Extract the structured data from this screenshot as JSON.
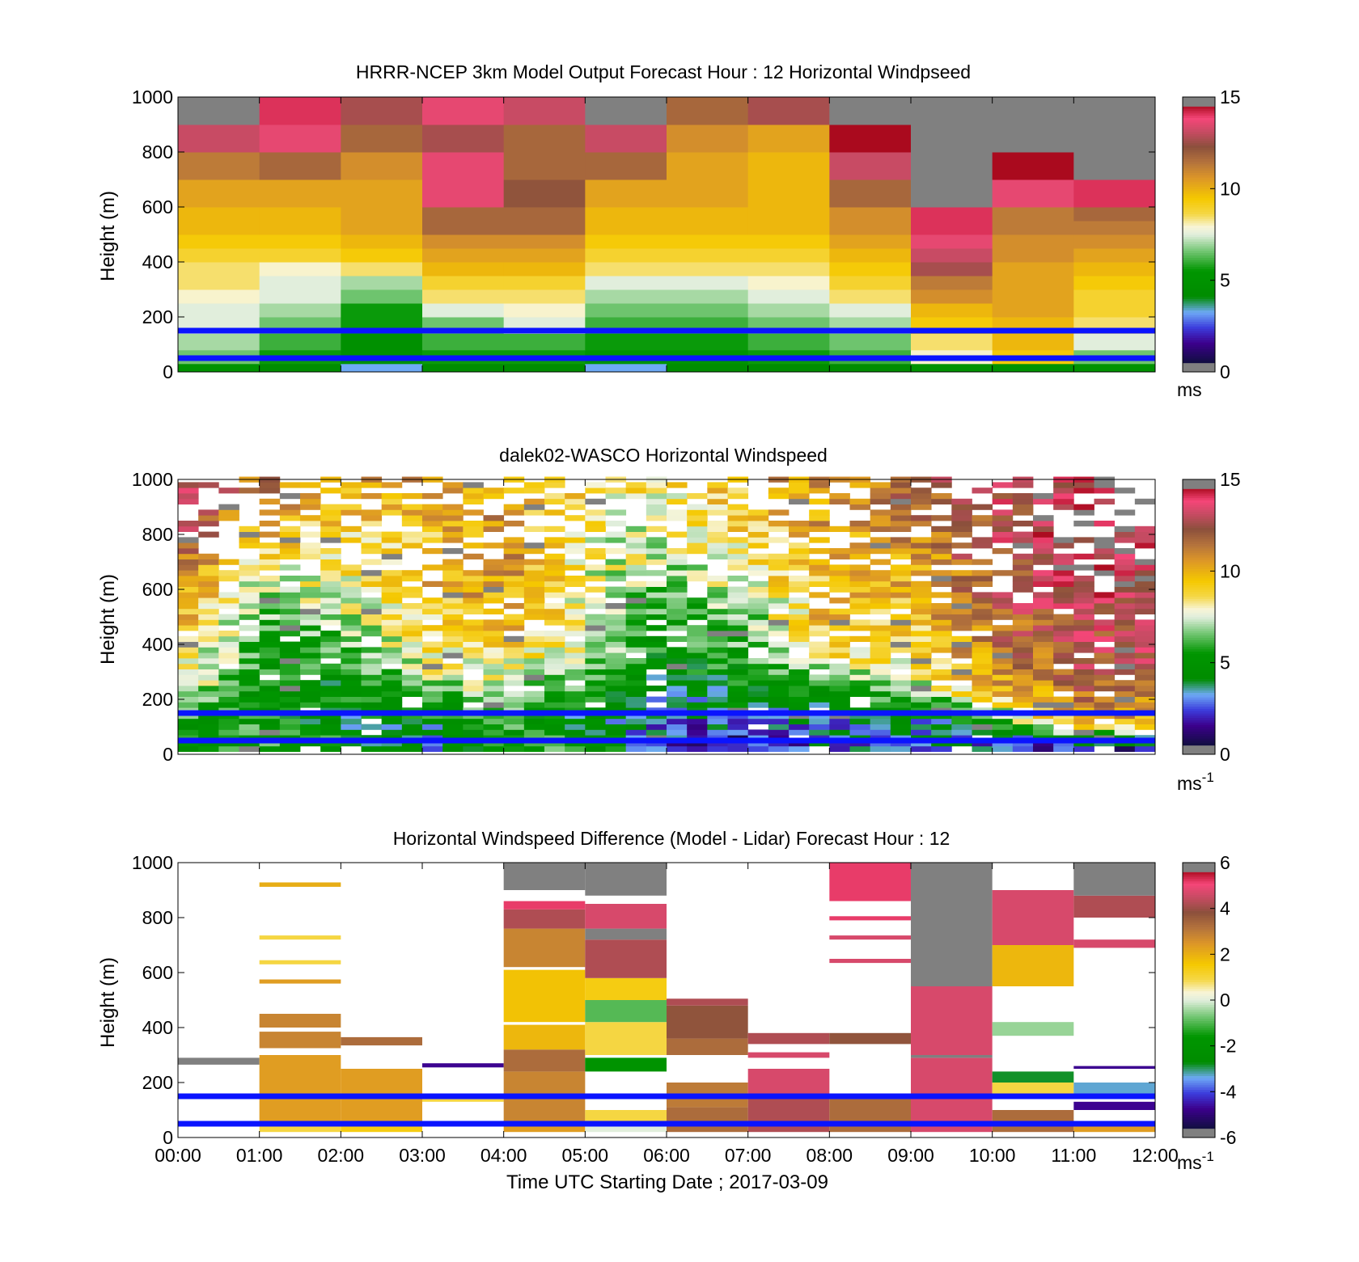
{
  "chart_data": [
    {
      "type": "heatmap",
      "title": "HRRR-NCEP 3km Model Output   Forecast Hour : 12 Horizontal Windpseed",
      "ylabel": "Height (m)",
      "xlabel": "",
      "ylim": [
        0,
        1000
      ],
      "yticks": [
        "0",
        "200",
        "400",
        "600",
        "800",
        "1000"
      ],
      "xlim_hours": [
        0,
        12
      ],
      "xticks_shown": false,
      "colorbar": {
        "min": 0,
        "max": 15,
        "ticks": [
          "0",
          "5",
          "10",
          "15"
        ],
        "unit": "ms",
        "unit_exp": ""
      },
      "reference_lines_m": [
        150,
        50
      ],
      "columns_hour": [
        0,
        1,
        2,
        3,
        4,
        5,
        6,
        7,
        8,
        9,
        10,
        11
      ],
      "rows": [
        {
          "bottom": 0,
          "top": 30,
          "values": [
            5,
            4,
            3,
            4,
            4,
            3,
            4,
            4,
            4,
            5,
            5,
            5
          ]
        },
        {
          "bottom": 30,
          "top": 80,
          "values": [
            6.5,
            5.5,
            4.5,
            5.5,
            5.5,
            5,
            5,
            5.5,
            6,
            8,
            9.5,
            6.5
          ]
        },
        {
          "bottom": 80,
          "top": 140,
          "values": [
            7,
            6,
            4.5,
            6,
            6,
            5.5,
            5.5,
            6,
            6.5,
            8.5,
            10,
            7.5
          ]
        },
        {
          "bottom": 140,
          "top": 200,
          "values": [
            7.5,
            6.5,
            5.5,
            6.5,
            7.5,
            6,
            6,
            6.5,
            7,
            9.5,
            10,
            8.5
          ]
        },
        {
          "bottom": 200,
          "top": 250,
          "values": [
            7.5,
            7,
            5.5,
            7.5,
            8,
            6.5,
            6.5,
            7,
            7.5,
            10,
            10.5,
            9
          ]
        },
        {
          "bottom": 250,
          "top": 300,
          "values": [
            8,
            7.5,
            6.5,
            8.5,
            8.5,
            7,
            7,
            7.5,
            8.5,
            11,
            10.5,
            9
          ]
        },
        {
          "bottom": 300,
          "top": 350,
          "values": [
            8.5,
            7.5,
            7,
            9,
            9,
            7.5,
            7.5,
            8,
            9,
            11.5,
            10.5,
            9.5
          ]
        },
        {
          "bottom": 350,
          "top": 400,
          "values": [
            8.5,
            8,
            8.5,
            10,
            10,
            8.5,
            8.5,
            8.5,
            9.5,
            13,
            10.5,
            10
          ]
        },
        {
          "bottom": 400,
          "top": 450,
          "values": [
            9,
            9,
            9.5,
            10.5,
            10.5,
            9,
            9,
            9,
            10,
            13.5,
            11,
            10.5
          ]
        },
        {
          "bottom": 450,
          "top": 500,
          "values": [
            9.5,
            9.5,
            10,
            11,
            11,
            9.5,
            9.5,
            9.5,
            10.5,
            14,
            11,
            11
          ]
        },
        {
          "bottom": 500,
          "top": 550,
          "values": [
            10,
            10,
            10.5,
            12,
            12,
            10,
            10,
            10,
            11,
            14.5,
            11.5,
            11.5
          ]
        },
        {
          "bottom": 550,
          "top": 600,
          "values": [
            10,
            10,
            10.5,
            12,
            12,
            10,
            10,
            10,
            11,
            14.5,
            11.5,
            12
          ]
        },
        {
          "bottom": 600,
          "top": 700,
          "values": [
            10.5,
            10.5,
            10.5,
            14,
            12.5,
            10.5,
            10.5,
            10,
            12,
            16,
            14,
            14.5
          ]
        },
        {
          "bottom": 700,
          "top": 800,
          "values": [
            11.5,
            12,
            11,
            14,
            12,
            12,
            10.5,
            10,
            13.5,
            16,
            15,
            16
          ]
        },
        {
          "bottom": 800,
          "top": 900,
          "values": [
            13.5,
            14,
            12,
            13,
            12,
            13.5,
            11,
            10.5,
            15,
            16,
            16,
            16
          ]
        },
        {
          "bottom": 900,
          "top": 1000,
          "values": [
            16,
            14.5,
            13,
            14,
            13.5,
            16,
            12,
            13,
            16,
            16,
            16,
            16
          ]
        }
      ]
    },
    {
      "type": "heatmap",
      "title": "dalek02-WASCO  Horizontal Windspeed",
      "ylabel": "Height (m)",
      "xlabel": "",
      "ylim": [
        0,
        1000
      ],
      "yticks": [
        "0",
        "200",
        "400",
        "600",
        "800",
        "1000"
      ],
      "xlim_hours": [
        0,
        12
      ],
      "xticks_shown": false,
      "colorbar": {
        "min": 0,
        "max": 15,
        "ticks": [
          "0",
          "5",
          "10",
          "15"
        ],
        "unit": "ms",
        "unit_exp": "-1"
      },
      "reference_lines_m": [
        150,
        50
      ],
      "profile_interval_hours": 0.25,
      "range_gate_m": 20,
      "profile_mean_by_hour": {
        "heights_m": [
          30,
          110,
          200,
          300,
          400,
          500,
          600,
          700,
          800,
          900,
          980
        ],
        "hours": [
          0,
          1,
          2,
          3,
          4,
          5,
          6,
          7,
          8,
          9,
          10,
          11,
          12
        ],
        "values": [
          [
            4.5,
            5.5,
            5.5,
            3.0,
            5.0,
            6.0,
            2.0,
            1.0,
            2.5,
            3.0,
            2.0,
            1.5,
            1.5
          ],
          [
            5.0,
            5.5,
            4.0,
            4.0,
            5.5,
            3.5,
            2.5,
            2.5,
            3.0,
            3.0,
            5.0,
            9.5,
            10.0
          ],
          [
            7.5,
            5.0,
            4.5,
            6.0,
            6.5,
            5.0,
            3.5,
            4.5,
            5.0,
            5.5,
            9.0,
            11.5,
            11.5
          ],
          [
            8.5,
            5.0,
            5.0,
            7.5,
            8.0,
            6.5,
            4.5,
            5.0,
            7.0,
            8.0,
            11.0,
            12.5,
            13.0
          ],
          [
            9.5,
            5.5,
            6.0,
            8.5,
            9.5,
            7.5,
            5.0,
            6.0,
            9.5,
            9.0,
            11.5,
            12.5,
            13.5
          ],
          [
            10.5,
            6.0,
            7.0,
            9.0,
            10.0,
            8.0,
            5.5,
            6.5,
            10.0,
            9.5,
            12.0,
            13.0,
            14.0
          ],
          [
            11.0,
            7.0,
            8.0,
            10.0,
            10.5,
            8.0,
            6.0,
            7.5,
            10.0,
            10.0,
            12.5,
            13.5,
            14.0
          ],
          [
            12.0,
            8.5,
            8.5,
            9.0,
            11.0,
            8.0,
            7.0,
            8.5,
            10.0,
            10.5,
            12.5,
            14.0,
            14.0
          ],
          [
            13.0,
            10.0,
            9.0,
            9.5,
            11.0,
            8.0,
            7.5,
            9.0,
            10.5,
            11.0,
            13.0,
            14.0,
            14.0
          ],
          [
            13.5,
            11.0,
            9.5,
            10.0,
            10.5,
            8.5,
            8.0,
            9.5,
            10.5,
            11.5,
            13.0,
            14.0,
            14.5
          ],
          [
            14.0,
            11.5,
            10.0,
            10.5,
            10.5,
            9.0,
            8.5,
            10.0,
            11.0,
            12.0,
            13.5,
            14.0,
            14.5
          ]
        ]
      }
    },
    {
      "type": "heatmap",
      "title": "Horizontal Windspeed Difference (Model - Lidar) Forecast Hour : 12",
      "ylabel": "Height (m)",
      "xlabel": "Time UTC  Starting Date ; 2017-03-09",
      "ylim": [
        0,
        1000
      ],
      "yticks": [
        "0",
        "200",
        "400",
        "600",
        "800",
        "1000"
      ],
      "xlim_hours": [
        0,
        12
      ],
      "xticks": [
        "00:00",
        "01:00",
        "02:00",
        "03:00",
        "04:00",
        "05:00",
        "06:00",
        "07:00",
        "08:00",
        "09:00",
        "10:00",
        "11:00",
        "12:00"
      ],
      "colorbar": {
        "min": -6,
        "max": 6,
        "ticks": [
          "-6",
          "-4",
          "-2",
          "0",
          "2",
          "4",
          "6"
        ],
        "unit": "ms",
        "unit_exp": "-1"
      },
      "reference_lines_m": [
        150,
        50
      ],
      "columns_hour": [
        0,
        1,
        2,
        3,
        4,
        5,
        6,
        7,
        8,
        9,
        10,
        11
      ],
      "segments": [
        [
          {
            "bottom": 265,
            "top": 290,
            "value": 6.5
          }
        ],
        [
          {
            "bottom": 20,
            "top": 40,
            "value": 1
          },
          {
            "bottom": 40,
            "top": 300,
            "value": 2.5
          },
          {
            "bottom": 325,
            "top": 385,
            "value": 3
          },
          {
            "bottom": 400,
            "top": 450,
            "value": 3
          },
          {
            "bottom": 560,
            "top": 575,
            "value": 2.5
          },
          {
            "bottom": 630,
            "top": 645,
            "value": 1
          },
          {
            "bottom": 720,
            "top": 735,
            "value": 1
          },
          {
            "bottom": 912,
            "top": 928,
            "value": 2.2
          }
        ],
        [
          {
            "bottom": 20,
            "top": 40,
            "value": 1.5
          },
          {
            "bottom": 40,
            "top": 250,
            "value": 2.5
          },
          {
            "bottom": 335,
            "top": 365,
            "value": 3.5
          }
        ],
        [
          {
            "bottom": 130,
            "top": 150,
            "value": 1
          },
          {
            "bottom": 255,
            "top": 270,
            "value": -5
          }
        ],
        [
          {
            "bottom": 20,
            "top": 60,
            "value": 2.5
          },
          {
            "bottom": 60,
            "top": 240,
            "value": 3
          },
          {
            "bottom": 240,
            "top": 320,
            "value": 3.5
          },
          {
            "bottom": 320,
            "top": 410,
            "value": 2
          },
          {
            "bottom": 420,
            "top": 610,
            "value": 1.8
          },
          {
            "bottom": 620,
            "top": 760,
            "value": 3
          },
          {
            "bottom": 760,
            "top": 830,
            "value": 4.5
          },
          {
            "bottom": 830,
            "top": 860,
            "value": 5.5
          },
          {
            "bottom": 900,
            "top": 1000,
            "value": 6.5
          }
        ],
        [
          {
            "bottom": 20,
            "top": 60,
            "value": 0
          },
          {
            "bottom": 60,
            "top": 100,
            "value": 1
          },
          {
            "bottom": 240,
            "top": 290,
            "value": -2
          },
          {
            "bottom": 300,
            "top": 420,
            "value": 1
          },
          {
            "bottom": 420,
            "top": 500,
            "value": -1
          },
          {
            "bottom": 500,
            "top": 580,
            "value": 1.5
          },
          {
            "bottom": 580,
            "top": 720,
            "value": 4.5
          },
          {
            "bottom": 720,
            "top": 760,
            "value": 6.5
          },
          {
            "bottom": 760,
            "top": 850,
            "value": 5
          },
          {
            "bottom": 880,
            "top": 1000,
            "value": 6.5
          }
        ],
        [
          {
            "bottom": 20,
            "top": 110,
            "value": 3.5
          },
          {
            "bottom": 110,
            "top": 200,
            "value": 3.2
          },
          {
            "bottom": 300,
            "top": 360,
            "value": 3.5
          },
          {
            "bottom": 360,
            "top": 480,
            "value": 4
          },
          {
            "bottom": 480,
            "top": 505,
            "value": 4.5
          }
        ],
        [
          {
            "bottom": 20,
            "top": 160,
            "value": 4.5
          },
          {
            "bottom": 160,
            "top": 250,
            "value": 5
          },
          {
            "bottom": 290,
            "top": 310,
            "value": 5
          },
          {
            "bottom": 340,
            "top": 380,
            "value": 4.5
          }
        ],
        [
          {
            "bottom": 20,
            "top": 140,
            "value": 3.5
          },
          {
            "bottom": 340,
            "top": 380,
            "value": 4
          },
          {
            "bottom": 635,
            "top": 650,
            "value": 5
          },
          {
            "bottom": 720,
            "top": 735,
            "value": 5
          },
          {
            "bottom": 790,
            "top": 805,
            "value": 5.5
          },
          {
            "bottom": 860,
            "top": 1000,
            "value": 5.5
          }
        ],
        [
          {
            "bottom": 20,
            "top": 290,
            "value": 5
          },
          {
            "bottom": 290,
            "top": 300,
            "value": 6.5
          },
          {
            "bottom": 300,
            "top": 550,
            "value": 5
          },
          {
            "bottom": 550,
            "top": 1000,
            "value": 6.5
          }
        ],
        [
          {
            "bottom": 20,
            "top": 100,
            "value": 3.5
          },
          {
            "bottom": 160,
            "top": 200,
            "value": 1
          },
          {
            "bottom": 200,
            "top": 240,
            "value": -3
          },
          {
            "bottom": 370,
            "top": 420,
            "value": -0.5
          },
          {
            "bottom": 550,
            "top": 700,
            "value": 2
          },
          {
            "bottom": 700,
            "top": 900,
            "value": 5
          }
        ],
        [
          {
            "bottom": 20,
            "top": 40,
            "value": 2.5
          },
          {
            "bottom": 100,
            "top": 130,
            "value": -5
          },
          {
            "bottom": 150,
            "top": 200,
            "value": -3.5
          },
          {
            "bottom": 250,
            "top": 260,
            "value": -5
          },
          {
            "bottom": 690,
            "top": 720,
            "value": 5
          },
          {
            "bottom": 800,
            "top": 880,
            "value": 4.5
          },
          {
            "bottom": 880,
            "top": 1000,
            "value": 6.5
          }
        ]
      ]
    }
  ]
}
